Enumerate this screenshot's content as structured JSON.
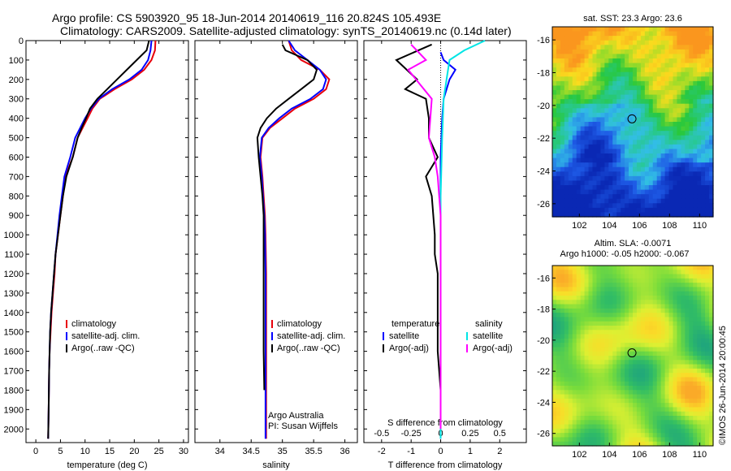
{
  "header": {
    "title_line1": "Argo profile: CS 5903920_95 18-Jun-2014 20140619_116 20.824S 105.493E",
    "title_line2": "Climatology: CARS2009. Satellite-adjusted climatology: synTS_20140619.nc (0.14d later)"
  },
  "colors": {
    "climatology": "#e8000b",
    "satellite": "#0000ff",
    "argo": "#000000",
    "sal_satellite": "#00e5e5",
    "sal_argo": "#ff00ff"
  },
  "chart_data": [
    {
      "id": "temperature",
      "type": "line",
      "xlabel": "temperature (deg C)",
      "xlim": [
        -2,
        31
      ],
      "xticks": [
        0,
        5,
        10,
        15,
        20,
        25,
        30
      ],
      "ylim": [
        2070,
        0
      ],
      "yticks": [
        0,
        100,
        200,
        300,
        400,
        500,
        600,
        700,
        800,
        900,
        1000,
        1100,
        1200,
        1300,
        1400,
        1500,
        1600,
        1700,
        1800,
        1900,
        2000
      ],
      "legend": [
        "climatology",
        "satellite-adj. clim.",
        "Argo(..raw -QC)"
      ],
      "series": [
        {
          "name": "climatology",
          "color_key": "climatology",
          "x": [
            24.3,
            24.2,
            23.5,
            22.0,
            19.5,
            16.0,
            13.0,
            11.5,
            10.5,
            9.5,
            8.5,
            7.5,
            6.0,
            5.5,
            5.0,
            4.5,
            4.0,
            3.8,
            3.5,
            3.2,
            3.0,
            2.8,
            2.7,
            2.6,
            2.5
          ],
          "y": [
            0,
            50,
            100,
            150,
            200,
            250,
            300,
            350,
            400,
            450,
            500,
            600,
            700,
            800,
            900,
            1000,
            1100,
            1200,
            1300,
            1400,
            1500,
            1600,
            1700,
            1900,
            2050
          ]
        },
        {
          "name": "satellite-adj. clim.",
          "color_key": "satellite",
          "x": [
            23.5,
            23.3,
            22.8,
            21.5,
            19.0,
            15.5,
            12.8,
            11.2,
            10.0,
            9.0,
            8.0,
            7.0,
            5.8,
            5.3,
            4.8,
            4.4,
            4.0,
            3.7,
            3.4,
            3.1,
            2.9,
            2.8,
            2.7,
            2.6,
            2.5
          ],
          "y": [
            0,
            50,
            100,
            150,
            200,
            250,
            300,
            350,
            400,
            450,
            500,
            600,
            700,
            800,
            900,
            1000,
            1100,
            1200,
            1300,
            1400,
            1500,
            1600,
            1700,
            1900,
            2050
          ]
        },
        {
          "name": "Argo(..raw -QC)",
          "color_key": "argo",
          "x": [
            23.0,
            22.5,
            20.5,
            18.5,
            16.5,
            14.5,
            12.5,
            11.0,
            10.2,
            9.3,
            8.5,
            7.5,
            6.2,
            5.5,
            5.0,
            4.5,
            4.0,
            3.7,
            3.4,
            3.1,
            2.9,
            2.8,
            2.7,
            2.6,
            2.5
          ],
          "y": [
            0,
            50,
            100,
            150,
            200,
            250,
            300,
            350,
            400,
            450,
            500,
            600,
            700,
            800,
            900,
            1000,
            1100,
            1200,
            1300,
            1400,
            1500,
            1600,
            1700,
            1900,
            2050
          ]
        }
      ]
    },
    {
      "id": "salinity",
      "type": "line",
      "xlabel": "salinity",
      "xlim": [
        33.6,
        36.2
      ],
      "xticks": [
        34,
        34.5,
        35,
        35.5,
        36
      ],
      "ylim": [
        2070,
        0
      ],
      "legend": [
        "climatology",
        "satellite-adj. clim.",
        "Argo(..raw -QC)"
      ],
      "annotation": [
        "Argo Australia",
        "PI: Susan Wijffels"
      ],
      "series": [
        {
          "name": "climatology",
          "color_key": "climatology",
          "x": [
            35.1,
            35.15,
            35.3,
            35.6,
            35.75,
            35.7,
            35.5,
            35.2,
            35.0,
            34.8,
            34.68,
            34.65,
            34.68,
            34.7,
            34.72,
            34.73,
            34.74,
            34.74,
            34.74,
            34.74,
            34.74
          ],
          "y": [
            0,
            50,
            100,
            150,
            200,
            250,
            300,
            350,
            400,
            450,
            500,
            600,
            700,
            800,
            900,
            1000,
            1200,
            1400,
            1600,
            1800,
            2050
          ]
        },
        {
          "name": "satellite-adj. clim.",
          "color_key": "satellite",
          "x": [
            35.1,
            35.2,
            35.4,
            35.6,
            35.7,
            35.65,
            35.45,
            35.15,
            34.95,
            34.78,
            34.67,
            34.64,
            34.67,
            34.69,
            34.71,
            34.72,
            34.73,
            34.73,
            34.73,
            34.73,
            34.73
          ],
          "y": [
            0,
            50,
            100,
            150,
            200,
            250,
            300,
            350,
            400,
            450,
            500,
            600,
            700,
            800,
            900,
            1000,
            1200,
            1400,
            1600,
            1800,
            2050
          ]
        },
        {
          "name": "Argo(..raw -QC)",
          "color_key": "argo",
          "x": [
            35.0,
            35.05,
            35.4,
            35.55,
            35.5,
            35.3,
            35.1,
            34.9,
            34.75,
            34.65,
            34.6,
            34.62,
            34.65,
            34.68,
            34.7,
            34.7,
            34.7,
            34.7,
            34.7,
            34.71
          ],
          "y": [
            20,
            50,
            100,
            150,
            200,
            250,
            300,
            350,
            400,
            450,
            500,
            600,
            700,
            800,
            900,
            1000,
            1200,
            1400,
            1600,
            1800
          ]
        }
      ]
    },
    {
      "id": "difference",
      "type": "line",
      "xlabel": "T difference from climatology",
      "xlabel_top": "S difference from climatology",
      "xlim": [
        -2.6,
        2.9
      ],
      "xticks": [
        -2,
        -1,
        0,
        1,
        2
      ],
      "s_ticks": [
        -0.5,
        -0.25,
        0,
        0.25,
        0.5
      ],
      "ylim": [
        2070,
        0
      ],
      "legend_left_title": "temperature",
      "legend_left": [
        "satellite",
        "Argo(-adj)"
      ],
      "legend_right_title": "salinity",
      "legend_right": [
        "satellite",
        "Argo(-adj)"
      ],
      "series": [
        {
          "name": "satellite",
          "var": "T",
          "color_key": "satellite",
          "x": [
            0.0,
            0.1,
            0.5,
            0.3,
            0.1,
            0.05,
            0.0,
            0.0,
            0.0,
            0.0,
            0.0
          ],
          "y": [
            60,
            100,
            150,
            200,
            300,
            400,
            600,
            800,
            1200,
            1600,
            2050
          ]
        },
        {
          "name": "Argo(-adj)",
          "var": "T",
          "color_key": "argo",
          "x": [
            -0.3,
            -1.5,
            -0.8,
            -1.2,
            -0.5,
            -0.4,
            -0.4,
            -0.1,
            -0.5,
            -0.3,
            -0.2,
            -0.2,
            -0.1,
            -0.1,
            -0.1,
            0.0,
            0.0
          ],
          "y": [
            20,
            100,
            200,
            250,
            300,
            400,
            500,
            600,
            700,
            800,
            1000,
            1100,
            1200,
            1400,
            1600,
            1800,
            2000
          ]
        },
        {
          "name": "satellite",
          "var": "S",
          "color_key": "sal_satellite",
          "x": [
            1.5,
            0.8,
            0.3,
            0.2,
            0.1,
            0.05,
            0.0,
            0.0,
            0.0
          ],
          "y": [
            0,
            50,
            100,
            200,
            300,
            500,
            800,
            1400,
            2050
          ]
        },
        {
          "name": "Argo(-adj)",
          "var": "S",
          "color_key": "sal_argo",
          "x": [
            -1.0,
            -0.5,
            -1.1,
            -0.3,
            -0.4,
            -0.2,
            -0.1,
            0.0,
            0.0,
            0.0
          ],
          "y": [
            20,
            100,
            150,
            300,
            500,
            600,
            700,
            900,
            1400,
            2000
          ]
        }
      ]
    },
    {
      "id": "sst_map",
      "type": "heatmap",
      "title": "sat. SST: 23.3 Argo: 23.6",
      "xlim": [
        100.2,
        110.9
      ],
      "xticks": [
        102,
        104,
        106,
        108,
        110
      ],
      "ylim": [
        -26.8,
        -15.2
      ],
      "yticks": [
        -16,
        -18,
        -20,
        -22,
        -24,
        -26
      ],
      "marker": {
        "lon": 105.5,
        "lat": -20.82
      }
    },
    {
      "id": "sla_map",
      "type": "heatmap",
      "title": "Altim. SLA: -0.0071",
      "subtitle": "Argo h1000: -0.05 h2000: -0.067",
      "xlim": [
        100.2,
        110.9
      ],
      "xticks": [
        102,
        104,
        106,
        108,
        110
      ],
      "ylim": [
        -26.8,
        -15.2
      ],
      "yticks": [
        -16,
        -18,
        -20,
        -22,
        -24,
        -26
      ],
      "marker": {
        "lon": 105.5,
        "lat": -20.82
      }
    }
  ],
  "side_label": "©IMOS 26-Jun-2014 20:00:45"
}
